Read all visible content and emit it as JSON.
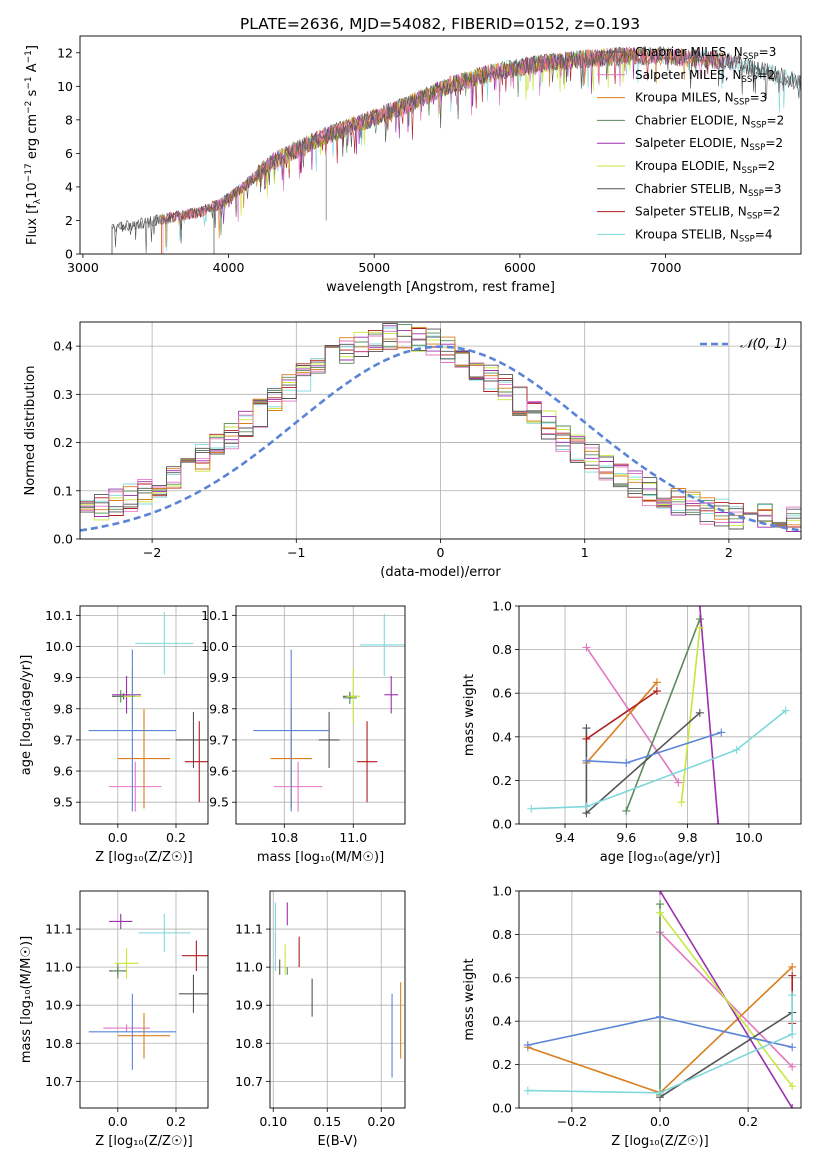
{
  "figure": {
    "title": "PLATE=2636, MJD=54082, FIBERID=0152, z=0.193",
    "series_names": [
      "Chabrier MILES",
      "Salpeter MILES",
      "Kroupa MILES",
      "Chabrier ELODIE",
      "Salpeter ELODIE",
      "Kroupa ELODIE",
      "Chabrier STELIB",
      "Salpeter STELIB",
      "Kroupa STELIB"
    ],
    "series_nssp": [
      "3",
      "2",
      "3",
      "2",
      "2",
      "2",
      "3",
      "2",
      "4"
    ],
    "nssp_prefix": "N",
    "nssp_sub": "SSP",
    "colors": [
      "#555555",
      "#e377c2",
      "#d97f1e",
      "#5b8a5b",
      "#9b2fae",
      "#c8e63c",
      "#555555",
      "#b01e1e",
      "#7fd8dc"
    ]
  },
  "chart_data": [
    {
      "id": "spectrum",
      "type": "line",
      "xlabel": "wavelength [Angstrom, rest frame]",
      "ylabel_parts": [
        "Flux [f",
        "λ",
        "10",
        "−17",
        " erg cm",
        "−2",
        " s",
        "−1",
        " A",
        "−1",
        "]"
      ],
      "xlim": [
        2980,
        7930
      ],
      "ylim": [
        0,
        13
      ],
      "xticks": [
        3000,
        4000,
        5000,
        6000,
        7000
      ],
      "yticks": [
        0,
        2,
        4,
        6,
        8,
        10,
        12
      ],
      "grid": false,
      "legend_position": "top-right",
      "continuum_knots": [
        [
          3200,
          1.5
        ],
        [
          3500,
          2.0
        ],
        [
          3800,
          2.5
        ],
        [
          3950,
          3.0
        ],
        [
          4100,
          4.0
        ],
        [
          4300,
          5.5
        ],
        [
          4600,
          6.8
        ],
        [
          4900,
          7.8
        ],
        [
          5200,
          8.8
        ],
        [
          5500,
          10.0
        ],
        [
          5800,
          10.8
        ],
        [
          6100,
          11.3
        ],
        [
          6400,
          11.6
        ],
        [
          6700,
          11.8
        ],
        [
          7000,
          11.8
        ],
        [
          7300,
          11.6
        ],
        [
          7500,
          11.4
        ],
        [
          7930,
          10.2
        ]
      ],
      "series_ranges": [
        [
          3200,
          7930
        ],
        [
          3550,
          7500
        ],
        [
          3540,
          7400
        ],
        [
          3900,
          6800
        ],
        [
          3900,
          6800
        ],
        [
          3900,
          6800
        ],
        [
          3200,
          7930
        ],
        [
          3540,
          7400
        ],
        [
          3540,
          7930
        ]
      ]
    },
    {
      "id": "residuals",
      "type": "step",
      "xlabel": "(data-model)/error",
      "ylabel": "Normed distribution",
      "xlim": [
        -2.5,
        2.5
      ],
      "ylim": [
        0,
        0.45
      ],
      "xticks": [
        -2,
        -1,
        0,
        1,
        2
      ],
      "yticks": [
        0.0,
        0.1,
        0.2,
        0.3,
        0.4
      ],
      "grid": true,
      "legend_position": "top-right",
      "legend_label": "𝒩(0, 1)",
      "gauss_color": "#5b84d6",
      "bin_width": 0.1,
      "peak_shift": -0.3,
      "sigma": 0.92
    },
    {
      "id": "z-age",
      "type": "errorbar",
      "xlabel": "Z [log₁₀(Z/Z☉)]",
      "ylabel": "age  [log₁₀(age/yr)]",
      "xlim": [
        -0.13,
        0.31
      ],
      "ylim": [
        9.43,
        10.13
      ],
      "xticks": [
        0.0,
        0.2
      ],
      "yticks": [
        9.5,
        9.6,
        9.7,
        9.8,
        9.9,
        10.0,
        10.1
      ],
      "grid": true,
      "points": [
        {
          "x": 0.02,
          "y": 9.84,
          "xe": 0.04,
          "ye": 0.01,
          "c": "#555555"
        },
        {
          "x": 0.06,
          "y": 9.55,
          "xe": 0.09,
          "ye": 0.08,
          "c": "#e377c2"
        },
        {
          "x": 0.09,
          "y": 9.64,
          "xe": 0.09,
          "ye": 0.16,
          "c": "#d97f1e"
        },
        {
          "x": 0.01,
          "y": 9.84,
          "xe": 0.02,
          "ye": 0.02,
          "c": "#5b8a5b"
        },
        {
          "x": 0.03,
          "y": 9.845,
          "xe": 0.05,
          "ye": 0.06,
          "c": "#9b2fae"
        },
        {
          "x": 0.05,
          "y": 9.84,
          "xe": 0.03,
          "ye": 0.09,
          "c": "#c8e63c"
        },
        {
          "x": 0.26,
          "y": 9.7,
          "xe": 0.06,
          "ye": 0.09,
          "c": "#555555"
        },
        {
          "x": 0.28,
          "y": 9.63,
          "xe": 0.05,
          "ye": 0.13,
          "c": "#b01e1e"
        },
        {
          "x": 0.05,
          "y": 9.73,
          "xe": 0.15,
          "ye": 0.26,
          "c": "#5b84d6"
        },
        {
          "x": 0.16,
          "y": 10.01,
          "xe": 0.1,
          "ye": 0.1,
          "c": "#7fd8dc"
        }
      ]
    },
    {
      "id": "mass-age",
      "type": "errorbar",
      "xlabel": "mass [log₁₀(M/M☉)]",
      "ylabel": "",
      "xlim": [
        10.66,
        11.15
      ],
      "ylim": [
        9.43,
        10.13
      ],
      "xticks": [
        10.8,
        11.0
      ],
      "yticks": [
        9.5,
        9.6,
        9.7,
        9.8,
        9.9,
        10.0,
        10.1
      ],
      "grid": true,
      "points": [
        {
          "x": 10.99,
          "y": 9.84,
          "xe": 0.02,
          "ye": 0.01,
          "c": "#555555"
        },
        {
          "x": 10.84,
          "y": 9.55,
          "xe": 0.07,
          "ye": 0.08,
          "c": "#e377c2"
        },
        {
          "x": 10.82,
          "y": 9.64,
          "xe": 0.06,
          "ye": 0.16,
          "c": "#d97f1e"
        },
        {
          "x": 10.99,
          "y": 9.835,
          "xe": 0.02,
          "ye": 0.02,
          "c": "#5b8a5b"
        },
        {
          "x": 11.11,
          "y": 9.845,
          "xe": 0.02,
          "ye": 0.06,
          "c": "#9b2fae"
        },
        {
          "x": 11.0,
          "y": 9.84,
          "xe": 0.02,
          "ye": 0.09,
          "c": "#c8e63c"
        },
        {
          "x": 10.93,
          "y": 9.7,
          "xe": 0.03,
          "ye": 0.09,
          "c": "#555555"
        },
        {
          "x": 11.04,
          "y": 9.63,
          "xe": 0.03,
          "ye": 0.13,
          "c": "#b01e1e"
        },
        {
          "x": 10.82,
          "y": 9.73,
          "xe": 0.11,
          "ye": 0.26,
          "c": "#5b84d6"
        },
        {
          "x": 11.09,
          "y": 10.005,
          "xe": 0.07,
          "ye": 0.1,
          "c": "#7fd8dc"
        }
      ]
    },
    {
      "id": "age-weight",
      "type": "line",
      "xlabel": "age  [log₁₀(age/yr)]",
      "ylabel": "mass weight",
      "xlim": [
        9.25,
        10.17
      ],
      "ylim": [
        0,
        1
      ],
      "xticks": [
        9.4,
        9.6,
        9.8,
        10.0
      ],
      "yticks": [
        0.0,
        0.2,
        0.4,
        0.6,
        0.8,
        1.0
      ],
      "grid": true,
      "lines": [
        {
          "c": "#e377c2",
          "pts": [
            [
              9.47,
              0.81
            ],
            [
              9.77,
              0.19
            ]
          ]
        },
        {
          "c": "#d97f1e",
          "pts": [
            [
              9.47,
              0.28
            ],
            [
              9.7,
              0.65
            ]
          ]
        },
        {
          "c": "#5b8a5b",
          "pts": [
            [
              9.6,
              0.06
            ],
            [
              9.84,
              0.94
            ]
          ]
        },
        {
          "c": "#9b2fae",
          "pts": [
            [
              9.84,
              1.0
            ],
            [
              9.9,
              0.0
            ]
          ]
        },
        {
          "c": "#c8e63c",
          "pts": [
            [
              9.78,
              0.1
            ],
            [
              9.84,
              0.9
            ]
          ]
        },
        {
          "c": "#555555",
          "pts": [
            [
              9.47,
              0.44
            ],
            [
              9.47,
              0.05
            ],
            [
              9.84,
              0.51
            ]
          ]
        },
        {
          "c": "#b01e1e",
          "pts": [
            [
              9.47,
              0.39
            ],
            [
              9.7,
              0.61
            ]
          ]
        },
        {
          "c": "#5b84d6",
          "pts": [
            [
              9.47,
              0.29
            ],
            [
              9.6,
              0.28
            ],
            [
              9.91,
              0.42
            ]
          ]
        },
        {
          "c": "#7fd8dc",
          "pts": [
            [
              9.29,
              0.07
            ],
            [
              9.47,
              0.08
            ],
            [
              9.96,
              0.34
            ],
            [
              10.12,
              0.52
            ]
          ]
        }
      ]
    },
    {
      "id": "z-mass",
      "type": "errorbar",
      "xlabel": "Z [log₁₀(Z/Z☉)]",
      "ylabel": "mass [log₁₀(M/M☉)]",
      "xlim": [
        -0.13,
        0.31
      ],
      "ylim": [
        10.63,
        11.2
      ],
      "xticks": [
        0.0,
        0.2
      ],
      "yticks": [
        10.7,
        10.8,
        10.9,
        11.0,
        11.1
      ],
      "grid": true,
      "points": [
        {
          "x": 0.0,
          "y": 10.99,
          "xe": 0.03,
          "ye": 0.01,
          "c": "#555555"
        },
        {
          "x": 0.03,
          "y": 10.84,
          "xe": 0.08,
          "ye": 0.01,
          "c": "#e377c2"
        },
        {
          "x": 0.09,
          "y": 10.82,
          "xe": 0.09,
          "ye": 0.06,
          "c": "#d97f1e"
        },
        {
          "x": 0.0,
          "y": 10.99,
          "xe": 0.02,
          "ye": 0.02,
          "c": "#5b8a5b"
        },
        {
          "x": 0.01,
          "y": 11.12,
          "xe": 0.04,
          "ye": 0.02,
          "c": "#9b2fae"
        },
        {
          "x": 0.03,
          "y": 11.01,
          "xe": 0.04,
          "ye": 0.04,
          "c": "#c8e63c"
        },
        {
          "x": 0.26,
          "y": 10.93,
          "xe": 0.05,
          "ye": 0.05,
          "c": "#555555"
        },
        {
          "x": 0.27,
          "y": 11.03,
          "xe": 0.05,
          "ye": 0.04,
          "c": "#b01e1e"
        },
        {
          "x": 0.05,
          "y": 10.83,
          "xe": 0.15,
          "ye": 0.1,
          "c": "#5b84d6"
        },
        {
          "x": 0.16,
          "y": 11.09,
          "xe": 0.09,
          "ye": 0.05,
          "c": "#7fd8dc"
        }
      ]
    },
    {
      "id": "ebv-mass",
      "type": "errorbar",
      "xlabel": "E(B-V)",
      "ylabel": "",
      "xlim": [
        0.097,
        0.222
      ],
      "ylim": [
        10.63,
        11.2
      ],
      "xticks": [
        0.1,
        0.15,
        0.2
      ],
      "yticks": [
        10.7,
        10.8,
        10.9,
        11.0,
        11.1
      ],
      "grid": true,
      "points": [
        {
          "x": 0.106,
          "y": 11.0,
          "xe": 0.0,
          "ye": 0.02,
          "c": "#555555"
        },
        {
          "x": 0.102,
          "y": 11.08,
          "xe": 0.0,
          "ye": 0.09,
          "c": "#7fd8dc"
        },
        {
          "x": 0.113,
          "y": 11.14,
          "xe": 0.0,
          "ye": 0.03,
          "c": "#9b2fae"
        },
        {
          "x": 0.111,
          "y": 11.02,
          "xe": 0.0,
          "ye": 0.04,
          "c": "#c8e63c"
        },
        {
          "x": 0.113,
          "y": 10.99,
          "xe": 0.0,
          "ye": 0.01,
          "c": "#5b8a5b"
        },
        {
          "x": 0.124,
          "y": 11.04,
          "xe": 0.0,
          "ye": 0.04,
          "c": "#b01e1e"
        },
        {
          "x": 0.136,
          "y": 10.92,
          "xe": 0.0,
          "ye": 0.05,
          "c": "#555555"
        },
        {
          "x": 0.21,
          "y": 10.82,
          "xe": 0.0,
          "ye": 0.11,
          "c": "#5b84d6"
        },
        {
          "x": 0.218,
          "y": 10.86,
          "xe": 0.0,
          "ye": 0.1,
          "c": "#d97f1e"
        }
      ]
    },
    {
      "id": "z-weight",
      "type": "line",
      "xlabel": "Z [log₁₀(Z/Z☉)]",
      "ylabel": "mass weight",
      "xlim": [
        -0.32,
        0.32
      ],
      "ylim": [
        0,
        1
      ],
      "xticks": [
        -0.2,
        0.0,
        0.2
      ],
      "yticks": [
        0.0,
        0.2,
        0.4,
        0.6,
        0.8,
        1.0
      ],
      "grid": true,
      "lines": [
        {
          "c": "#e377c2",
          "pts": [
            [
              0.0,
              0.81
            ],
            [
              0.3,
              0.19
            ]
          ]
        },
        {
          "c": "#d97f1e",
          "pts": [
            [
              -0.3,
              0.28
            ],
            [
              0.0,
              0.07
            ],
            [
              0.3,
              0.65
            ]
          ]
        },
        {
          "c": "#5b8a5b",
          "pts": [
            [
              0.0,
              0.94
            ],
            [
              0.0,
              0.06
            ]
          ]
        },
        {
          "c": "#9b2fae",
          "pts": [
            [
              0.0,
              1.0
            ],
            [
              0.3,
              0.0
            ]
          ]
        },
        {
          "c": "#c8e63c",
          "pts": [
            [
              0.0,
              0.9
            ],
            [
              0.3,
              0.1
            ]
          ]
        },
        {
          "c": "#555555",
          "pts": [
            [
              0.0,
              0.05
            ],
            [
              0.3,
              0.44
            ]
          ]
        },
        {
          "c": "#b01e1e",
          "pts": [
            [
              0.3,
              0.61
            ],
            [
              0.3,
              0.39
            ]
          ]
        },
        {
          "c": "#5b84d6",
          "pts": [
            [
              -0.3,
              0.29
            ],
            [
              0.0,
              0.42
            ],
            [
              0.3,
              0.28
            ]
          ]
        },
        {
          "c": "#7fd8dc",
          "pts": [
            [
              -0.3,
              0.08
            ],
            [
              0.0,
              0.07
            ],
            [
              0.3,
              0.34
            ],
            [
              0.3,
              0.52
            ]
          ]
        }
      ]
    }
  ]
}
